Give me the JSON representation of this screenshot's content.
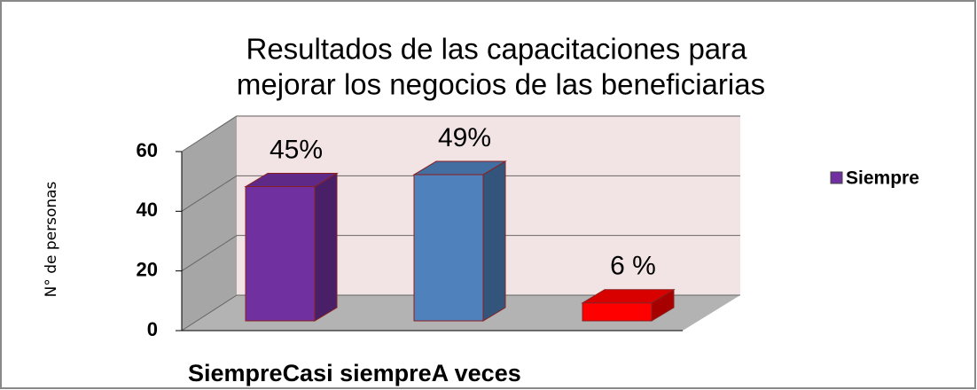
{
  "chart_data": {
    "type": "bar3d",
    "title": [
      "Resultados de las capacitaciones para",
      "mejorar los negocios de las beneficiarias"
    ],
    "y_label": "N° de personas",
    "categories": [
      "Siempre",
      "Casi siempre",
      "A veces"
    ],
    "series": [
      {
        "name": "Siempre",
        "color": "#7030a0",
        "values": [
          45,
          49,
          6
        ],
        "value_labels": [
          "45%",
          "49%",
          "6 %"
        ],
        "colors": [
          "#7030a0",
          "#4f81bd",
          "#ff0000"
        ]
      }
    ],
    "ylim": [
      0,
      60
    ],
    "yticks": [
      0,
      20,
      40,
      60
    ],
    "grid": true,
    "legend": "right"
  }
}
